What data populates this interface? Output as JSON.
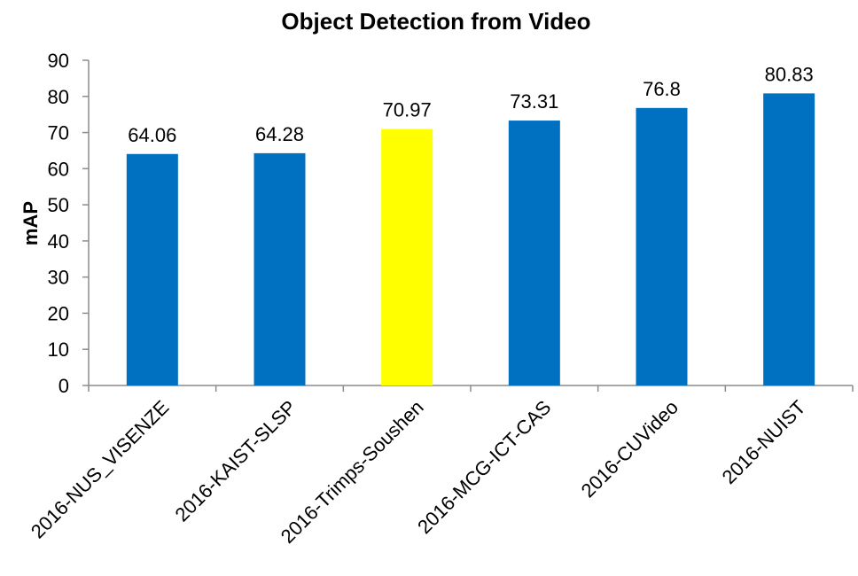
{
  "chart_data": {
    "type": "bar",
    "title": "Object Detection from Video",
    "xlabel": "",
    "ylabel": "mAP",
    "ylim": [
      0,
      90
    ],
    "yticks": [
      0,
      10,
      20,
      30,
      40,
      50,
      60,
      70,
      80,
      90
    ],
    "grid": false,
    "legend": "none",
    "categories": [
      "2016-NUS_VISENZE",
      "2016-KAIST-SLSP",
      "2016-Trimps-Soushen",
      "2016-MCG-ICT-CAS",
      "2016-CUVideo",
      "2016-NUIST"
    ],
    "values": [
      64.06,
      64.28,
      70.97,
      73.31,
      76.8,
      80.83
    ],
    "data_labels": [
      "64.06",
      "64.28",
      "70.97",
      "73.31",
      "76.8",
      "80.83"
    ],
    "colors": {
      "default_bar": "#0070c0",
      "highlight_bar": "#ffff00",
      "axis": "#8c8c8c",
      "text": "#000000"
    },
    "highlight_index": 2
  }
}
